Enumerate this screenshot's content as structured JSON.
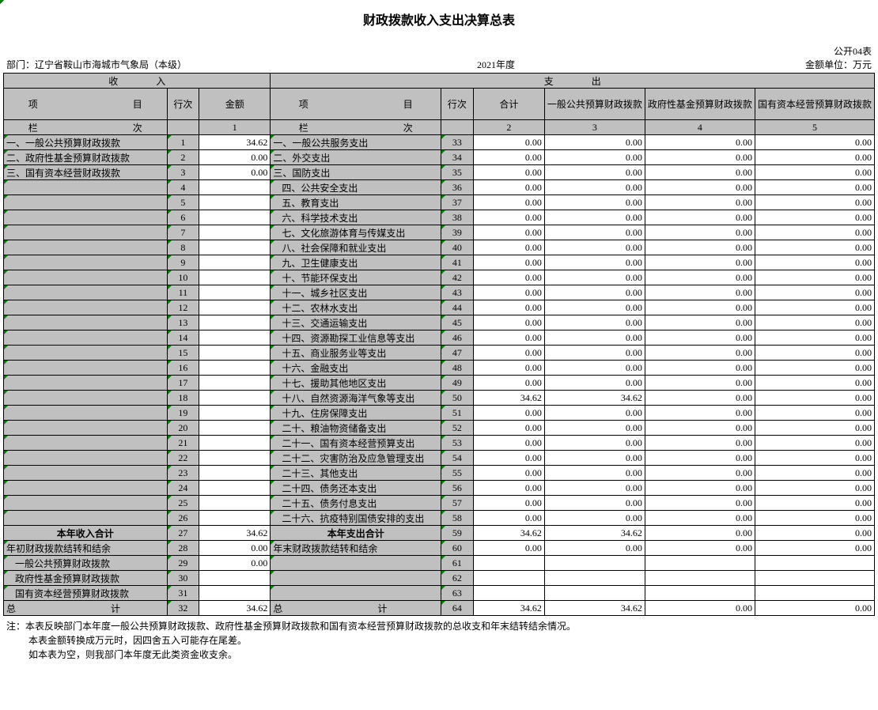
{
  "title": "财政拨款收入支出决算总表",
  "form_no": "公开04表",
  "dept_label": "部门：",
  "dept": "辽宁省鞍山市海城市气象局（本级）",
  "year": "2021年度",
  "unit_label": "金额单位：万元",
  "header": {
    "income": "收　　　　入",
    "expense": "支　　　　出",
    "item_l": "项　　　　　　　　　　目",
    "rownum": "行次",
    "amount": "金额",
    "item_r": "项　　　　　　　　　　目",
    "total": "合计",
    "col3": "一般公共预算财政拨款",
    "col4": "政府性基金预算财政拨款",
    "col5": "国有资本经营预算财政拨款",
    "colhead_l": "栏　　　　　　　　　　次",
    "colhead_r": "栏　　　　　　　　　　次",
    "c1": "1",
    "c2": "2",
    "c3": "3",
    "c4": "4",
    "c5": "5"
  },
  "rows": [
    {
      "li": "一、一般公共预算财政拨款",
      "ln": "1",
      "la": "34.62",
      "ri": "一、一般公共服务支出",
      "rn": "33",
      "v": [
        "0.00",
        "0.00",
        "0.00",
        "0.00"
      ]
    },
    {
      "li": "二、政府性基金预算财政拨款",
      "ln": "2",
      "la": "0.00",
      "ri": "二、外交支出",
      "rn": "34",
      "v": [
        "0.00",
        "0.00",
        "0.00",
        "0.00"
      ]
    },
    {
      "li": "三、国有资本经营财政拨款",
      "ln": "3",
      "la": "0.00",
      "ri": "三、国防支出",
      "rn": "35",
      "v": [
        "0.00",
        "0.00",
        "0.00",
        "0.00"
      ]
    },
    {
      "li": "",
      "ln": "4",
      "la": "",
      "ri": "四、公共安全支出",
      "rn": "36",
      "v": [
        "0.00",
        "0.00",
        "0.00",
        "0.00"
      ],
      "ri_indent": 1
    },
    {
      "li": "",
      "ln": "5",
      "la": "",
      "ri": "五、教育支出",
      "rn": "37",
      "v": [
        "0.00",
        "0.00",
        "0.00",
        "0.00"
      ],
      "ri_indent": 1
    },
    {
      "li": "",
      "ln": "6",
      "la": "",
      "ri": "六、科学技术支出",
      "rn": "38",
      "v": [
        "0.00",
        "0.00",
        "0.00",
        "0.00"
      ],
      "ri_indent": 1
    },
    {
      "li": "",
      "ln": "7",
      "la": "",
      "ri": "七、文化旅游体育与传媒支出",
      "rn": "39",
      "v": [
        "0.00",
        "0.00",
        "0.00",
        "0.00"
      ],
      "ri_indent": 1
    },
    {
      "li": "",
      "ln": "8",
      "la": "",
      "ri": "八、社会保障和就业支出",
      "rn": "40",
      "v": [
        "0.00",
        "0.00",
        "0.00",
        "0.00"
      ],
      "ri_indent": 1
    },
    {
      "li": "",
      "ln": "9",
      "la": "",
      "ri": "九、卫生健康支出",
      "rn": "41",
      "v": [
        "0.00",
        "0.00",
        "0.00",
        "0.00"
      ],
      "ri_indent": 1
    },
    {
      "li": "",
      "ln": "10",
      "la": "",
      "ri": "十、节能环保支出",
      "rn": "42",
      "v": [
        "0.00",
        "0.00",
        "0.00",
        "0.00"
      ],
      "ri_indent": 1
    },
    {
      "li": "",
      "ln": "11",
      "la": "",
      "ri": "十一、城乡社区支出",
      "rn": "43",
      "v": [
        "0.00",
        "0.00",
        "0.00",
        "0.00"
      ],
      "ri_indent": 1
    },
    {
      "li": "",
      "ln": "12",
      "la": "",
      "ri": "十二、农林水支出",
      "rn": "44",
      "v": [
        "0.00",
        "0.00",
        "0.00",
        "0.00"
      ],
      "ri_indent": 1
    },
    {
      "li": "",
      "ln": "13",
      "la": "",
      "ri": "十三、交通运输支出",
      "rn": "45",
      "v": [
        "0.00",
        "0.00",
        "0.00",
        "0.00"
      ],
      "ri_indent": 1
    },
    {
      "li": "",
      "ln": "14",
      "la": "",
      "ri": "十四、资源勘探工业信息等支出",
      "rn": "46",
      "v": [
        "0.00",
        "0.00",
        "0.00",
        "0.00"
      ],
      "ri_indent": 1
    },
    {
      "li": "",
      "ln": "15",
      "la": "",
      "ri": "十五、商业服务业等支出",
      "rn": "47",
      "v": [
        "0.00",
        "0.00",
        "0.00",
        "0.00"
      ],
      "ri_indent": 1
    },
    {
      "li": "",
      "ln": "16",
      "la": "",
      "ri": "十六、金融支出",
      "rn": "48",
      "v": [
        "0.00",
        "0.00",
        "0.00",
        "0.00"
      ],
      "ri_indent": 1
    },
    {
      "li": "",
      "ln": "17",
      "la": "",
      "ri": "十七、援助其他地区支出",
      "rn": "49",
      "v": [
        "0.00",
        "0.00",
        "0.00",
        "0.00"
      ],
      "ri_indent": 1
    },
    {
      "li": "",
      "ln": "18",
      "la": "",
      "ri": "十八、自然资源海洋气象等支出",
      "rn": "50",
      "v": [
        "34.62",
        "34.62",
        "0.00",
        "0.00"
      ],
      "ri_indent": 1
    },
    {
      "li": "",
      "ln": "19",
      "la": "",
      "ri": "十九、住房保障支出",
      "rn": "51",
      "v": [
        "0.00",
        "0.00",
        "0.00",
        "0.00"
      ],
      "ri_indent": 1
    },
    {
      "li": "",
      "ln": "20",
      "la": "",
      "ri": "二十、粮油物资储备支出",
      "rn": "52",
      "v": [
        "0.00",
        "0.00",
        "0.00",
        "0.00"
      ],
      "ri_indent": 1
    },
    {
      "li": "",
      "ln": "21",
      "la": "",
      "ri": "二十一、国有资本经营预算支出",
      "rn": "53",
      "v": [
        "0.00",
        "0.00",
        "0.00",
        "0.00"
      ],
      "ri_indent": 1
    },
    {
      "li": "",
      "ln": "22",
      "la": "",
      "ri": "二十二、灾害防治及应急管理支出",
      "rn": "54",
      "v": [
        "0.00",
        "0.00",
        "0.00",
        "0.00"
      ],
      "ri_indent": 1
    },
    {
      "li": "",
      "ln": "23",
      "la": "",
      "ri": "二十三、其他支出",
      "rn": "55",
      "v": [
        "0.00",
        "0.00",
        "0.00",
        "0.00"
      ],
      "ri_indent": 1
    },
    {
      "li": "",
      "ln": "24",
      "la": "",
      "ri": "二十四、债务还本支出",
      "rn": "56",
      "v": [
        "0.00",
        "0.00",
        "0.00",
        "0.00"
      ],
      "ri_indent": 1
    },
    {
      "li": "",
      "ln": "25",
      "la": "",
      "ri": "二十五、债务付息支出",
      "rn": "57",
      "v": [
        "0.00",
        "0.00",
        "0.00",
        "0.00"
      ],
      "ri_indent": 1
    },
    {
      "li": "",
      "ln": "26",
      "la": "",
      "ri": "二十六、抗疫特别国债安排的支出",
      "rn": "58",
      "v": [
        "0.00",
        "0.00",
        "0.00",
        "0.00"
      ],
      "ri_indent": 1
    }
  ],
  "subtotal1": {
    "li": "本年收入合计",
    "ln": "27",
    "la": "34.62",
    "ri": "本年支出合计",
    "rn": "59",
    "v": [
      "34.62",
      "34.62",
      "0.00",
      "0.00"
    ]
  },
  "rows2": [
    {
      "li": "年初财政拨款结转和结余",
      "ln": "28",
      "la": "0.00",
      "ri": "年末财政拨款结转和结余",
      "rn": "60",
      "v": [
        "0.00",
        "0.00",
        "0.00",
        "0.00"
      ]
    },
    {
      "li": "一般公共预算财政拨款",
      "ln": "29",
      "la": "0.00",
      "ri": "",
      "rn": "61",
      "v": [
        "",
        "",
        "",
        ""
      ],
      "li_indent": 1
    },
    {
      "li": "政府性基金预算财政拨款",
      "ln": "30",
      "la": "",
      "ri": "",
      "rn": "62",
      "v": [
        "",
        "",
        "",
        ""
      ],
      "li_indent": 1
    },
    {
      "li": "国有资本经营预算财政拨款",
      "ln": "31",
      "la": "",
      "ri": "",
      "rn": "63",
      "v": [
        "",
        "",
        "",
        ""
      ],
      "li_indent": 1
    }
  ],
  "total": {
    "li": "总　　　　　　　　　　计",
    "ln": "32",
    "la": "34.62",
    "ri": "总　　　　　　　　　　计",
    "rn": "64",
    "v": [
      "34.62",
      "34.62",
      "0.00",
      "0.00"
    ]
  },
  "footnotes": [
    "注：本表反映部门本年度一般公共预算财政拨款、政府性基金预算财政拨款和国有资本经营预算财政拨款的总收支和年末结转结余情况。",
    "本表金额转换成万元时，因四舍五入可能存在尾差。",
    "如本表为空，则我部门本年度无此类资金收支余。"
  ]
}
